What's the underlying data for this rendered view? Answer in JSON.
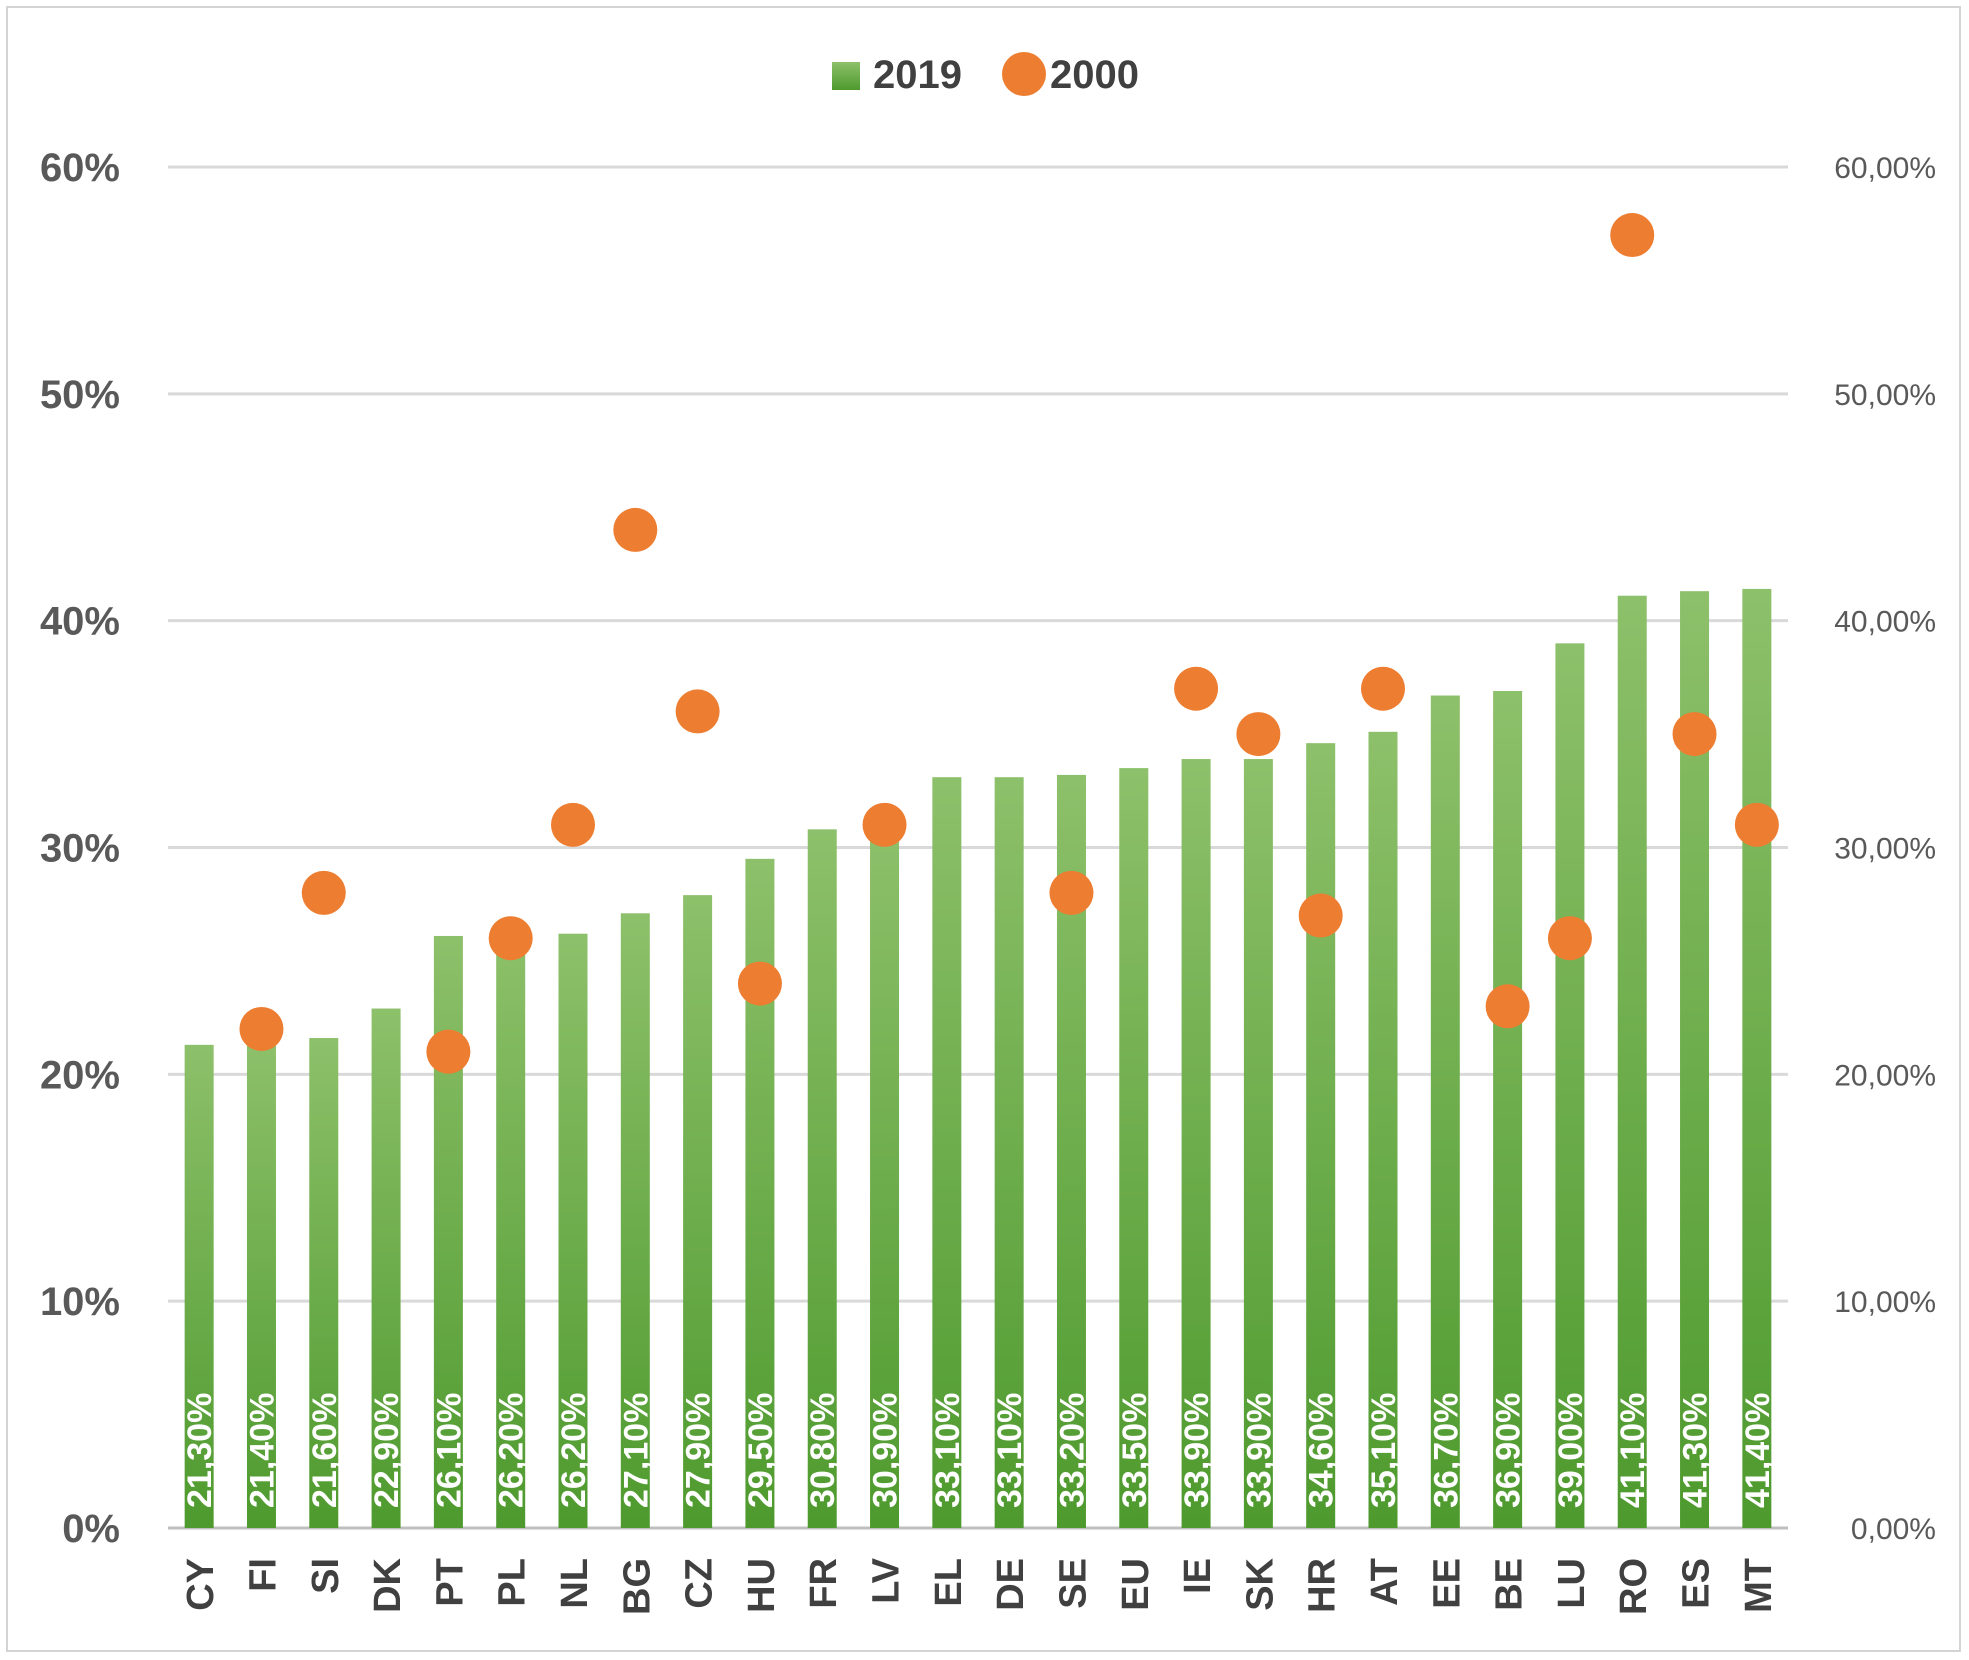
{
  "chart_data": {
    "type": "bar",
    "categories": [
      "CY",
      "FI",
      "SI",
      "DK",
      "PT",
      "PL",
      "NL",
      "BG",
      "CZ",
      "HU",
      "FR",
      "LV",
      "EL",
      "DE",
      "SE",
      "EU",
      "IE",
      "SK",
      "HR",
      "AT",
      "EE",
      "BE",
      "LU",
      "RO",
      "ES",
      "MT"
    ],
    "series": [
      {
        "name": "2019",
        "type": "bar",
        "color": "#70ad47",
        "values": [
          21.3,
          21.4,
          21.6,
          22.9,
          26.1,
          26.2,
          26.2,
          27.1,
          27.9,
          29.5,
          30.8,
          30.9,
          33.1,
          33.1,
          33.2,
          33.5,
          33.9,
          33.9,
          34.6,
          35.1,
          36.7,
          36.9,
          39.0,
          41.1,
          41.3,
          41.4
        ],
        "data_labels": [
          "21,30%",
          "21,40%",
          "21,60%",
          "22,90%",
          "26,10%",
          "26,20%",
          "26,20%",
          "27,10%",
          "27,90%",
          "29,50%",
          "30,80%",
          "30,90%",
          "33,10%",
          "33,10%",
          "33,20%",
          "33,50%",
          "33,90%",
          "33,90%",
          "34,60%",
          "35,10%",
          "36,70%",
          "36,90%",
          "39,00%",
          "41,10%",
          "41,30%",
          "41,40%"
        ]
      },
      {
        "name": "2000",
        "type": "scatter",
        "color": "#ed7d31",
        "values": [
          null,
          22,
          28,
          null,
          21,
          26,
          31,
          44,
          36,
          24,
          null,
          31,
          null,
          null,
          28,
          null,
          37,
          35,
          27,
          37,
          null,
          23,
          26,
          57,
          35,
          31
        ]
      }
    ],
    "y_axis_left": {
      "ticks": [
        "0%",
        "10%",
        "20%",
        "30%",
        "40%",
        "50%",
        "60%"
      ],
      "ylim": [
        0,
        60
      ]
    },
    "y_axis_right": {
      "ticks": [
        "0,00%",
        "10,00%",
        "20,00%",
        "30,00%",
        "40,00%",
        "50,00%",
        "60,00%"
      ],
      "ylim": [
        0,
        60
      ]
    },
    "legend": {
      "position": "top-center",
      "entries": [
        "2019",
        "2000"
      ]
    },
    "grid": true,
    "title": "",
    "xlabel": "",
    "ylabel": ""
  }
}
